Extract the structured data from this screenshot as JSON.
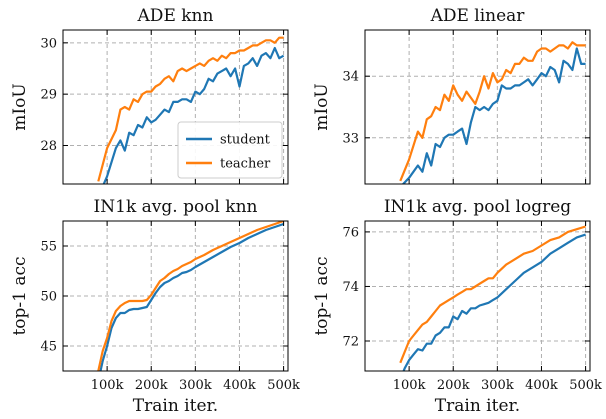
{
  "colors": {
    "student": "#1f77b4",
    "teacher": "#ff7f0e",
    "grid": "#b0b0b0"
  },
  "x_tick_labels": [
    "100k",
    "200k",
    "300k",
    "400k",
    "500k"
  ],
  "chart_data": [
    {
      "type": "line",
      "title": "ADE knn",
      "ylabel": "mIoU",
      "xlabel": "",
      "xlim": [
        0,
        510000
      ],
      "ylim": [
        27.25,
        30.25
      ],
      "yticks": [
        28,
        29,
        30
      ],
      "ytick_labels": [
        "28",
        "29",
        "30"
      ],
      "xticks": [
        100000,
        200000,
        300000,
        400000,
        500000
      ],
      "xtick_labels": [
        "",
        "",
        "",
        "",
        ""
      ],
      "grid": true,
      "legend": {
        "position": "bottom-right",
        "entries": [
          "student",
          "teacher"
        ]
      },
      "series": [
        {
          "name": "student",
          "color": "#1f77b4",
          "x": [
            80000,
            100000,
            120000,
            130000,
            140000,
            150000,
            160000,
            170000,
            180000,
            190000,
            200000,
            210000,
            220000,
            230000,
            240000,
            250000,
            260000,
            270000,
            280000,
            290000,
            300000,
            310000,
            320000,
            330000,
            340000,
            350000,
            360000,
            370000,
            380000,
            390000,
            400000,
            410000,
            420000,
            430000,
            440000,
            450000,
            460000,
            470000,
            480000,
            490000,
            500000
          ],
          "y": [
            27.0,
            27.4,
            27.95,
            28.1,
            27.9,
            28.25,
            28.2,
            28.4,
            28.35,
            28.55,
            28.45,
            28.5,
            28.6,
            28.7,
            28.65,
            28.85,
            28.85,
            28.9,
            28.9,
            28.85,
            29.05,
            29.0,
            29.1,
            29.3,
            29.25,
            29.4,
            29.45,
            29.5,
            29.35,
            29.5,
            29.15,
            29.55,
            29.6,
            29.7,
            29.55,
            29.75,
            29.8,
            29.7,
            29.9,
            29.7,
            29.75
          ]
        },
        {
          "name": "teacher",
          "color": "#ff7f0e",
          "x": [
            80000,
            100000,
            120000,
            130000,
            140000,
            150000,
            160000,
            170000,
            180000,
            190000,
            200000,
            210000,
            220000,
            230000,
            240000,
            250000,
            260000,
            270000,
            280000,
            290000,
            300000,
            310000,
            320000,
            330000,
            340000,
            350000,
            360000,
            370000,
            380000,
            390000,
            400000,
            410000,
            420000,
            430000,
            440000,
            450000,
            460000,
            470000,
            480000,
            490000,
            500000
          ],
          "y": [
            27.3,
            27.95,
            28.3,
            28.7,
            28.75,
            28.7,
            28.9,
            28.85,
            29.0,
            29.05,
            29.05,
            29.15,
            29.2,
            29.3,
            29.35,
            29.25,
            29.45,
            29.5,
            29.45,
            29.5,
            29.55,
            29.6,
            29.55,
            29.65,
            29.7,
            29.65,
            29.75,
            29.7,
            29.8,
            29.8,
            29.85,
            29.85,
            29.9,
            29.95,
            29.95,
            30.0,
            30.05,
            30.05,
            30.0,
            30.1,
            30.1
          ]
        }
      ]
    },
    {
      "type": "line",
      "title": "ADE linear",
      "ylabel": "mIoU",
      "xlabel": "",
      "xlim": [
        0,
        510000
      ],
      "ylim": [
        32.25,
        34.75
      ],
      "yticks": [
        33,
        34
      ],
      "ytick_labels": [
        "33",
        "34"
      ],
      "xticks": [
        100000,
        200000,
        300000,
        400000,
        500000
      ],
      "xtick_labels": [
        "",
        "",
        "",
        "",
        ""
      ],
      "grid": true,
      "legend": null,
      "series": [
        {
          "name": "student",
          "color": "#1f77b4",
          "x": [
            80000,
            100000,
            120000,
            130000,
            140000,
            150000,
            160000,
            170000,
            180000,
            190000,
            200000,
            210000,
            220000,
            230000,
            240000,
            250000,
            260000,
            270000,
            280000,
            290000,
            300000,
            310000,
            320000,
            330000,
            340000,
            350000,
            360000,
            370000,
            380000,
            390000,
            400000,
            410000,
            420000,
            430000,
            440000,
            450000,
            460000,
            470000,
            480000,
            490000,
            500000
          ],
          "y": [
            32.2,
            32.35,
            32.55,
            32.45,
            32.75,
            32.55,
            32.9,
            32.85,
            33.0,
            33.05,
            33.05,
            33.1,
            33.15,
            32.9,
            33.25,
            33.5,
            33.45,
            33.5,
            33.45,
            33.55,
            33.6,
            33.85,
            33.8,
            33.8,
            33.85,
            33.85,
            33.9,
            33.95,
            33.85,
            33.95,
            34.05,
            34.0,
            34.15,
            34.1,
            33.9,
            34.25,
            34.2,
            34.1,
            34.45,
            34.2,
            34.2
          ]
        },
        {
          "name": "teacher",
          "color": "#ff7f0e",
          "x": [
            80000,
            100000,
            120000,
            130000,
            140000,
            150000,
            160000,
            170000,
            180000,
            190000,
            200000,
            210000,
            220000,
            230000,
            240000,
            250000,
            260000,
            270000,
            280000,
            290000,
            300000,
            310000,
            320000,
            330000,
            340000,
            350000,
            360000,
            370000,
            380000,
            390000,
            400000,
            410000,
            420000,
            430000,
            440000,
            450000,
            460000,
            470000,
            480000,
            490000,
            500000
          ],
          "y": [
            32.3,
            32.65,
            33.1,
            33.0,
            33.3,
            33.35,
            33.5,
            33.45,
            33.7,
            33.6,
            33.85,
            33.7,
            33.6,
            33.75,
            33.65,
            33.55,
            33.75,
            34.0,
            33.8,
            34.05,
            33.9,
            33.95,
            34.1,
            34.05,
            34.2,
            34.2,
            34.3,
            34.25,
            34.25,
            34.4,
            34.45,
            34.45,
            34.4,
            34.45,
            34.5,
            34.5,
            34.45,
            34.55,
            34.5,
            34.5,
            34.5
          ]
        }
      ]
    },
    {
      "type": "line",
      "title": "IN1k avg. pool knn",
      "ylabel": "top-1 acc",
      "xlabel": "Train iter.",
      "xlim": [
        0,
        510000
      ],
      "ylim": [
        42.5,
        57.5
      ],
      "yticks": [
        45,
        50,
        55
      ],
      "ytick_labels": [
        "45",
        "50",
        "55"
      ],
      "xticks": [
        100000,
        200000,
        300000,
        400000,
        500000
      ],
      "xtick_labels": [
        "100k",
        "200k",
        "300k",
        "400k",
        "500k"
      ],
      "grid": true,
      "legend": null,
      "series": [
        {
          "name": "student",
          "color": "#1f77b4",
          "x": [
            80000,
            90000,
            100000,
            110000,
            120000,
            130000,
            140000,
            150000,
            160000,
            170000,
            180000,
            190000,
            200000,
            210000,
            220000,
            230000,
            240000,
            250000,
            260000,
            270000,
            280000,
            290000,
            300000,
            320000,
            340000,
            360000,
            380000,
            400000,
            420000,
            440000,
            460000,
            480000,
            500000
          ],
          "y": [
            41.5,
            43.5,
            45.0,
            46.8,
            47.8,
            48.3,
            48.3,
            48.6,
            48.7,
            48.7,
            48.8,
            48.9,
            49.6,
            50.3,
            50.9,
            51.3,
            51.5,
            51.8,
            52.0,
            52.3,
            52.4,
            52.6,
            52.9,
            53.4,
            53.9,
            54.4,
            54.9,
            55.3,
            55.8,
            56.2,
            56.6,
            56.9,
            57.2
          ]
        },
        {
          "name": "teacher",
          "color": "#ff7f0e",
          "x": [
            80000,
            90000,
            100000,
            110000,
            120000,
            130000,
            140000,
            150000,
            160000,
            170000,
            180000,
            190000,
            200000,
            210000,
            220000,
            230000,
            240000,
            250000,
            260000,
            270000,
            280000,
            290000,
            300000,
            320000,
            340000,
            360000,
            380000,
            400000,
            420000,
            440000,
            460000,
            480000,
            500000
          ],
          "y": [
            42.5,
            44.5,
            45.8,
            47.5,
            48.5,
            49.0,
            49.3,
            49.5,
            49.5,
            49.5,
            49.5,
            49.6,
            50.1,
            50.8,
            51.5,
            51.8,
            52.2,
            52.5,
            52.7,
            53.0,
            53.2,
            53.4,
            53.7,
            54.1,
            54.6,
            55.0,
            55.4,
            55.8,
            56.2,
            56.6,
            56.9,
            57.2,
            57.5
          ]
        }
      ]
    },
    {
      "type": "line",
      "title": "IN1k avg. pool logreg",
      "ylabel": "top-1 acc",
      "xlabel": "Train iter.",
      "xlim": [
        0,
        510000
      ],
      "ylim": [
        70.9,
        76.4
      ],
      "yticks": [
        72,
        74,
        76
      ],
      "ytick_labels": [
        "72",
        "74",
        "76"
      ],
      "xticks": [
        100000,
        200000,
        300000,
        400000,
        500000
      ],
      "xtick_labels": [
        "100k",
        "200k",
        "300k",
        "400k",
        "500k"
      ],
      "grid": true,
      "legend": null,
      "series": [
        {
          "name": "student",
          "color": "#1f77b4",
          "x": [
            80000,
            90000,
            100000,
            110000,
            120000,
            130000,
            140000,
            150000,
            160000,
            170000,
            180000,
            190000,
            200000,
            210000,
            220000,
            230000,
            240000,
            250000,
            260000,
            270000,
            280000,
            290000,
            300000,
            320000,
            340000,
            360000,
            380000,
            400000,
            420000,
            440000,
            460000,
            480000,
            500000
          ],
          "y": [
            70.6,
            71.0,
            71.3,
            71.5,
            71.7,
            71.65,
            71.9,
            71.9,
            72.2,
            72.3,
            72.5,
            72.5,
            72.9,
            72.8,
            73.1,
            73.0,
            73.2,
            73.2,
            73.3,
            73.35,
            73.4,
            73.5,
            73.6,
            73.9,
            74.2,
            74.5,
            74.7,
            74.9,
            75.2,
            75.4,
            75.6,
            75.8,
            75.9
          ]
        },
        {
          "name": "teacher",
          "color": "#ff7f0e",
          "x": [
            80000,
            90000,
            100000,
            110000,
            120000,
            130000,
            140000,
            150000,
            160000,
            170000,
            180000,
            190000,
            200000,
            210000,
            220000,
            230000,
            240000,
            250000,
            260000,
            270000,
            280000,
            290000,
            300000,
            320000,
            340000,
            360000,
            380000,
            400000,
            420000,
            440000,
            460000,
            480000,
            500000
          ],
          "y": [
            71.2,
            71.6,
            72.0,
            72.2,
            72.4,
            72.6,
            72.7,
            72.9,
            73.1,
            73.3,
            73.4,
            73.5,
            73.6,
            73.7,
            73.8,
            73.9,
            73.9,
            74.0,
            74.1,
            74.2,
            74.3,
            74.3,
            74.5,
            74.8,
            75.0,
            75.2,
            75.3,
            75.5,
            75.7,
            75.8,
            76.0,
            76.1,
            76.2
          ]
        }
      ]
    }
  ]
}
